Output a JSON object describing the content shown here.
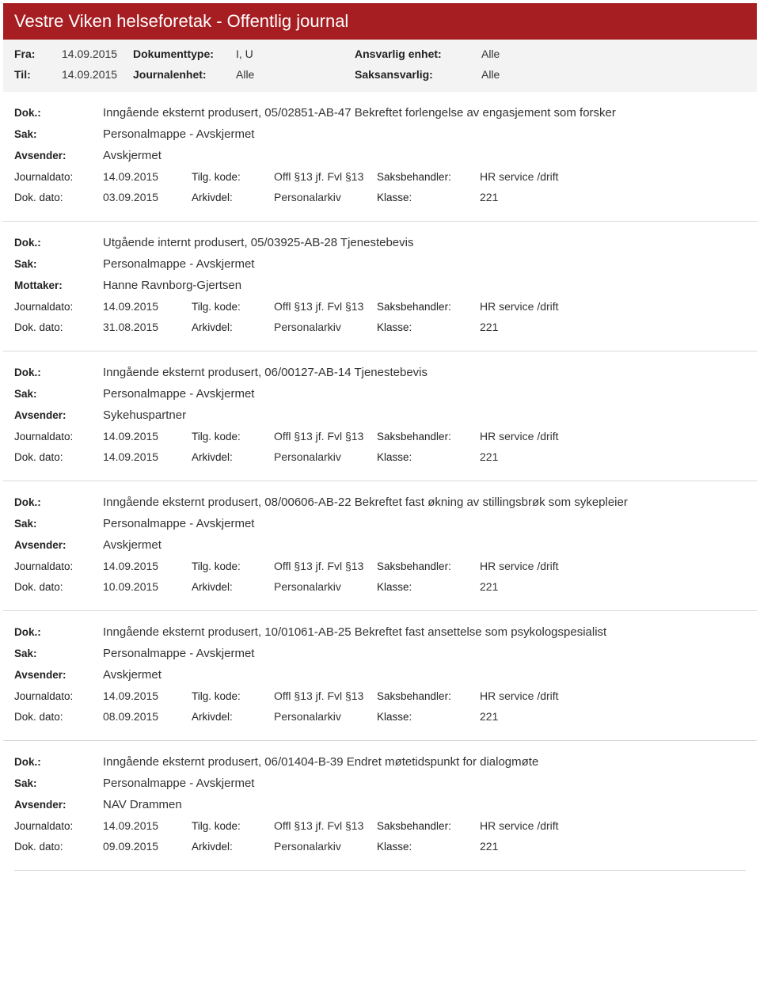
{
  "header": {
    "title": "Vestre Viken helseforetak - Offentlig journal"
  },
  "filters": {
    "fra_label": "Fra:",
    "fra_value": "14.09.2015",
    "til_label": "Til:",
    "til_value": "14.09.2015",
    "doktype_label": "Dokumenttype:",
    "doktype_value": "I, U",
    "journalenhet_label": "Journalenhet:",
    "journalenhet_value": "Alle",
    "ansvarlig_label": "Ansvarlig enhet:",
    "ansvarlig_value": "Alle",
    "saksansvarlig_label": "Saksansvarlig:",
    "saksansvarlig_value": "Alle"
  },
  "labels": {
    "dok": "Dok.:",
    "sak": "Sak:",
    "avsender": "Avsender:",
    "mottaker": "Mottaker:",
    "journaldato": "Journaldato:",
    "dokdato": "Dok. dato:",
    "tilgkode": "Tilg. kode:",
    "arkivdel": "Arkivdel:",
    "saksbehandler": "Saksbehandler:",
    "klasse": "Klasse:"
  },
  "entries": [
    {
      "dok": "Inngående eksternt produsert, 05/02851-AB-47 Bekreftet forlengelse av engasjement som forsker",
      "sak": "Personalmappe - Avskjermet",
      "party_label_key": "avsender",
      "party_value": "Avskjermet",
      "journaldato": "14.09.2015",
      "tilgkode": "Offl §13 jf. Fvl §13",
      "saksbehandler": "HR service /drift",
      "dokdato": "03.09.2015",
      "arkivdel": "Personalarkiv",
      "klasse": "221"
    },
    {
      "dok": "Utgående internt produsert, 05/03925-AB-28 Tjenestebevis",
      "sak": "Personalmappe - Avskjermet",
      "party_label_key": "mottaker",
      "party_value": "Hanne Ravnborg-Gjertsen",
      "journaldato": "14.09.2015",
      "tilgkode": "Offl §13 jf. Fvl §13",
      "saksbehandler": "HR service /drift",
      "dokdato": "31.08.2015",
      "arkivdel": "Personalarkiv",
      "klasse": "221"
    },
    {
      "dok": "Inngående eksternt produsert, 06/00127-AB-14 Tjenestebevis",
      "sak": "Personalmappe - Avskjermet",
      "party_label_key": "avsender",
      "party_value": "Sykehuspartner",
      "journaldato": "14.09.2015",
      "tilgkode": "Offl §13 jf. Fvl §13",
      "saksbehandler": "HR service /drift",
      "dokdato": "14.09.2015",
      "arkivdel": "Personalarkiv",
      "klasse": "221"
    },
    {
      "dok": "Inngående eksternt produsert, 08/00606-AB-22 Bekreftet fast økning av stillingsbrøk som sykepleier",
      "sak": "Personalmappe - Avskjermet",
      "party_label_key": "avsender",
      "party_value": "Avskjermet",
      "journaldato": "14.09.2015",
      "tilgkode": "Offl §13 jf. Fvl §13",
      "saksbehandler": "HR service /drift",
      "dokdato": "10.09.2015",
      "arkivdel": "Personalarkiv",
      "klasse": "221"
    },
    {
      "dok": "Inngående eksternt produsert, 10/01061-AB-25 Bekreftet fast ansettelse som psykologspesialist",
      "sak": "Personalmappe - Avskjermet",
      "party_label_key": "avsender",
      "party_value": "Avskjermet",
      "journaldato": "14.09.2015",
      "tilgkode": "Offl §13 jf. Fvl §13",
      "saksbehandler": "HR service /drift",
      "dokdato": "08.09.2015",
      "arkivdel": "Personalarkiv",
      "klasse": "221"
    },
    {
      "dok": "Inngående eksternt produsert, 06/01404-B-39 Endret møtetidspunkt for dialogmøte",
      "sak": "Personalmappe - Avskjermet",
      "party_label_key": "avsender",
      "party_value": "NAV Drammen",
      "journaldato": "14.09.2015",
      "tilgkode": "Offl §13 jf. Fvl §13",
      "saksbehandler": "HR service /drift",
      "dokdato": "09.09.2015",
      "arkivdel": "Personalarkiv",
      "klasse": "221"
    }
  ],
  "colors": {
    "header_bg": "#a71e22",
    "header_text": "#ffffff",
    "filter_bg": "#f3f3f3",
    "rule": "#d9d9d9",
    "text": "#333333"
  }
}
